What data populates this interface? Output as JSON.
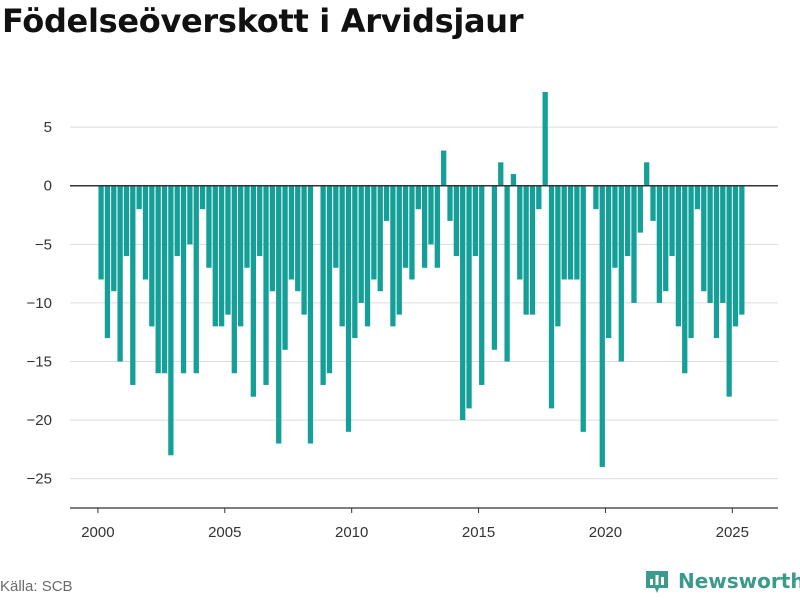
{
  "title": "Födelseöverskott i Arvidsjaur",
  "source_label": "Källa: SCB",
  "brand": {
    "name": "Newsworthy",
    "icon": "bar-chart-logo-icon",
    "color": "#3a9a8c"
  },
  "chart_data": {
    "type": "bar",
    "title": "Födelseöverskott i Arvidsjaur",
    "xlabel": "",
    "ylabel": "",
    "bar_color": "#14a098",
    "x_ticks": [
      2000,
      2005,
      2010,
      2015,
      2020,
      2025
    ],
    "y_ticks": [
      5,
      0,
      -5,
      -10,
      -15,
      -20,
      -25
    ],
    "y_tick_labels": [
      "5",
      "0",
      "−5",
      "−10",
      "−15",
      "−20",
      "−25"
    ],
    "ylim": [
      -27.5,
      8
    ],
    "xlim": [
      1998.9,
      2026.8
    ],
    "grid": true,
    "frequency": "quarterly",
    "x": [
      "2000Q1",
      "2000Q2",
      "2000Q3",
      "2000Q4",
      "2001Q1",
      "2001Q2",
      "2001Q3",
      "2001Q4",
      "2002Q1",
      "2002Q2",
      "2002Q3",
      "2002Q4",
      "2003Q1",
      "2003Q2",
      "2003Q3",
      "2003Q4",
      "2004Q1",
      "2004Q2",
      "2004Q3",
      "2004Q4",
      "2005Q1",
      "2005Q2",
      "2005Q3",
      "2005Q4",
      "2006Q1",
      "2006Q2",
      "2006Q3",
      "2006Q4",
      "2007Q1",
      "2007Q2",
      "2007Q3",
      "2007Q4",
      "2008Q1",
      "2008Q2",
      "2008Q3",
      "2008Q4",
      "2009Q1",
      "2009Q2",
      "2009Q3",
      "2009Q4",
      "2010Q1",
      "2010Q2",
      "2010Q3",
      "2010Q4",
      "2011Q1",
      "2011Q2",
      "2011Q3",
      "2011Q4",
      "2012Q1",
      "2012Q2",
      "2012Q3",
      "2012Q4",
      "2013Q1",
      "2013Q2",
      "2013Q3",
      "2013Q4",
      "2014Q1",
      "2014Q2",
      "2014Q3",
      "2014Q4",
      "2015Q1",
      "2015Q2",
      "2015Q3",
      "2015Q4",
      "2016Q1",
      "2016Q2",
      "2016Q3",
      "2016Q4",
      "2017Q1",
      "2017Q2",
      "2017Q3",
      "2017Q4",
      "2018Q1",
      "2018Q2",
      "2018Q3",
      "2018Q4",
      "2019Q1",
      "2019Q2",
      "2019Q3",
      "2019Q4",
      "2020Q1",
      "2020Q2",
      "2020Q3",
      "2020Q4",
      "2021Q1",
      "2021Q2",
      "2021Q3",
      "2021Q4",
      "2022Q1",
      "2022Q2",
      "2022Q3",
      "2022Q4",
      "2023Q1",
      "2023Q2",
      "2023Q3",
      "2023Q4",
      "2024Q1",
      "2024Q2",
      "2024Q3",
      "2024Q4",
      "2025Q1",
      "2025Q2"
    ],
    "values": [
      -8,
      -13,
      -9,
      -15,
      -6,
      -17,
      -2,
      -8,
      -12,
      -16,
      -16,
      -23,
      -6,
      -16,
      -5,
      -16,
      -2,
      -7,
      -12,
      -12,
      -11,
      -16,
      -12,
      -7,
      -18,
      -6,
      -17,
      -9,
      -22,
      -14,
      -8,
      -9,
      -11,
      -22,
      0,
      -17,
      -16,
      -7,
      -12,
      -21,
      -13,
      -10,
      -12,
      -8,
      -9,
      -3,
      -12,
      -11,
      -7,
      -8,
      -2,
      -7,
      -5,
      -7,
      3,
      -3,
      -6,
      -20,
      -19,
      -6,
      -17,
      0,
      -14,
      2,
      -15,
      1,
      -8,
      -11,
      -11,
      -2,
      8,
      -19,
      -12,
      -8,
      -8,
      -8,
      -21,
      0,
      -2,
      -24,
      -13,
      -7,
      -15,
      -6,
      -10,
      -4,
      2,
      -3,
      -10,
      -9,
      -6,
      -12,
      -16,
      -13,
      -2,
      -9,
      -10,
      -13,
      -10,
      -18,
      -12,
      -11
    ]
  }
}
